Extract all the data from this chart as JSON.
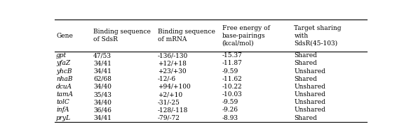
{
  "col_headers": [
    "Gene",
    "Binding sequence\nof SdsR",
    "Binding sequence\nof mRNA",
    "Free energy of\nbase-pairings\n(kcal/mol)",
    "Target sharing\nwith\nSdsR(45-103)"
  ],
  "rows": [
    [
      "gpt",
      "47/53",
      "-136/-130",
      "-15.37",
      "Shared"
    ],
    [
      "yfaZ",
      "34/41",
      "+12/+18",
      "-11.87",
      "Shared"
    ],
    [
      "yhcB",
      "34/41",
      "+23/+30",
      "-9.59",
      "Unshared"
    ],
    [
      "nhaB",
      "62/68",
      "-12/-6",
      "-11.62",
      "Shared"
    ],
    [
      "dcuA",
      "34/40",
      "+94/+100",
      "-10.22",
      "Unshared"
    ],
    [
      "tamA",
      "35/43",
      "+2/+10",
      "-10.03",
      "Unshared"
    ],
    [
      "tolC",
      "34/40",
      "-31/-25",
      "-9.59",
      "Unshared"
    ],
    [
      "infA",
      "36/46",
      "-128/-118",
      "-9.26",
      "Unshared"
    ],
    [
      "pryL",
      "34/41",
      "-79/-72",
      "-8.93",
      "Shared"
    ]
  ],
  "font_size": 6.5,
  "header_font_size": 6.5,
  "background_color": "#ffffff",
  "text_color": "#000000",
  "line_color": "#000000"
}
